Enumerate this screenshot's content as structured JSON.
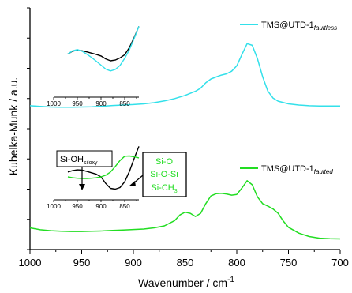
{
  "chart_data": {
    "type": "line",
    "xlabel": "Wavenumber / cm",
    "xlabel_sup": "-1",
    "ylabel": "Kubelka-Munk / a.u.",
    "xlim": [
      1000,
      700
    ],
    "x_reversed": true,
    "x_ticks": [
      "1000",
      "950",
      "900",
      "850",
      "800",
      "750",
      "700"
    ],
    "x_tick_values": [
      1000,
      950,
      900,
      850,
      800,
      750,
      700
    ],
    "y_ticks_labeled": false,
    "ylim": [
      0,
      1
    ],
    "colors": {
      "faultless": "#33e0ea",
      "faulted": "#22dd22",
      "siloxy": "#000000",
      "axis": "#000000"
    },
    "series": [
      {
        "id": "faultless",
        "legend_main": "TMS@UTD-1",
        "legend_sub": "faultless",
        "color": "#33e0ea",
        "x": [
          1000,
          990,
          980,
          970,
          960,
          950,
          940,
          930,
          920,
          910,
          900,
          890,
          880,
          870,
          860,
          850,
          840,
          835,
          830,
          825,
          820,
          815,
          810,
          805,
          800,
          795,
          790,
          785,
          780,
          775,
          770,
          765,
          760,
          750,
          740,
          730,
          720,
          710,
          700
        ],
        "y": [
          0.595,
          0.592,
          0.59,
          0.589,
          0.589,
          0.59,
          0.591,
          0.593,
          0.596,
          0.598,
          0.6,
          0.603,
          0.608,
          0.615,
          0.625,
          0.638,
          0.655,
          0.668,
          0.69,
          0.706,
          0.714,
          0.722,
          0.727,
          0.738,
          0.76,
          0.808,
          0.852,
          0.845,
          0.79,
          0.715,
          0.656,
          0.627,
          0.614,
          0.603,
          0.598,
          0.595,
          0.594,
          0.594,
          0.594
        ]
      },
      {
        "id": "faulted",
        "legend_main": "TMS@UTD-1",
        "legend_sub": "faulted",
        "color": "#22dd22",
        "x": [
          1000,
          990,
          980,
          970,
          960,
          950,
          940,
          930,
          920,
          910,
          900,
          890,
          880,
          870,
          860,
          855,
          850,
          845,
          840,
          835,
          830,
          825,
          820,
          815,
          810,
          805,
          800,
          795,
          790,
          785,
          780,
          775,
          770,
          765,
          760,
          755,
          750,
          740,
          730,
          720,
          710,
          700
        ],
        "y": [
          0.09,
          0.082,
          0.078,
          0.076,
          0.075,
          0.075,
          0.076,
          0.077,
          0.079,
          0.081,
          0.083,
          0.085,
          0.09,
          0.098,
          0.12,
          0.143,
          0.155,
          0.15,
          0.137,
          0.15,
          0.19,
          0.222,
          0.231,
          0.233,
          0.23,
          0.225,
          0.228,
          0.255,
          0.285,
          0.268,
          0.218,
          0.19,
          0.18,
          0.168,
          0.15,
          0.118,
          0.092,
          0.068,
          0.054,
          0.047,
          0.045,
          0.044
        ]
      }
    ],
    "insets": [
      {
        "id": "inset-top",
        "x_ticks": [
          "1000",
          "950",
          "900",
          "850"
        ],
        "x_tick_values": [
          1000,
          950,
          900,
          850
        ],
        "xlim": [
          1000,
          820
        ],
        "series": [
          {
            "id": "inset-top-black",
            "color": "#000000",
            "x": [
              970,
              960,
              950,
              940,
              930,
              920,
              910,
              900,
              890,
              880,
              870,
              860,
              850,
              840,
              830,
              820
            ],
            "y": [
              0.6,
              0.64,
              0.652,
              0.645,
              0.63,
              0.612,
              0.595,
              0.572,
              0.532,
              0.505,
              0.515,
              0.545,
              0.59,
              0.69,
              0.83,
              0.985
            ]
          },
          {
            "id": "inset-top-cyan",
            "color": "#33e0ea",
            "x": [
              970,
              960,
              950,
              940,
              930,
              920,
              910,
              900,
              890,
              880,
              870,
              860,
              850,
              840,
              830,
              820
            ],
            "y": [
              0.6,
              0.645,
              0.662,
              0.64,
              0.598,
              0.552,
              0.5,
              0.445,
              0.39,
              0.365,
              0.385,
              0.44,
              0.54,
              0.66,
              0.815,
              0.985
            ]
          }
        ]
      },
      {
        "id": "inset-bottom",
        "x_ticks": [
          "1000",
          "950",
          "900",
          "850"
        ],
        "x_tick_values": [
          1000,
          950,
          900,
          850
        ],
        "xlim": [
          1000,
          820
        ],
        "series": [
          {
            "id": "inset-bottom-black",
            "color": "#000000",
            "x": [
              970,
              960,
              950,
              940,
              930,
              920,
              910,
              900,
              890,
              880,
              870,
              860,
              850,
              840,
              830,
              820
            ],
            "y": [
              0.51,
              0.535,
              0.55,
              0.545,
              0.52,
              0.495,
              0.47,
              0.42,
              0.3,
              0.21,
              0.195,
              0.225,
              0.33,
              0.52,
              0.76,
              0.98
            ]
          },
          {
            "id": "inset-bottom-green",
            "color": "#22dd22",
            "x": [
              970,
              960,
              950,
              940,
              930,
              920,
              910,
              900,
              890,
              880,
              870,
              860,
              850,
              840,
              830,
              820
            ],
            "y": [
              0.42,
              0.405,
              0.395,
              0.392,
              0.39,
              0.395,
              0.405,
              0.42,
              0.45,
              0.51,
              0.61,
              0.72,
              0.8,
              0.805,
              0.79,
              0.77
            ]
          }
        ]
      }
    ],
    "annotations": {
      "siloxy_main": "Si-OH",
      "siloxy_sub": "siloxy",
      "green_lines": [
        "Si-O",
        "Si-O-Si",
        "Si-CH"
      ],
      "green_last_sub": "3"
    }
  }
}
